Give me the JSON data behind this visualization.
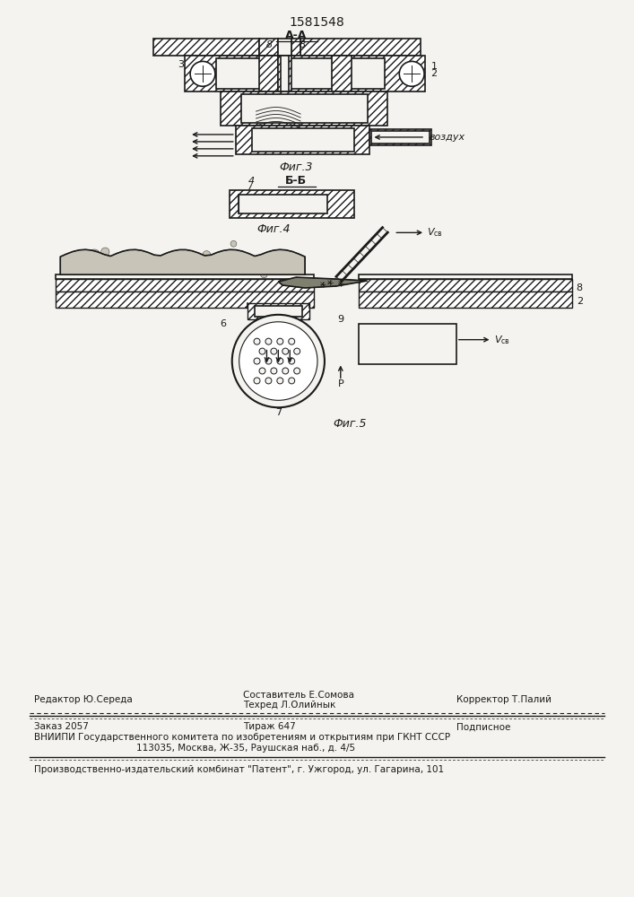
{
  "patent_number": "1581548",
  "background_color": "#f5f3ef",
  "line_color": "#1a1a1a",
  "fig3_label": "Фиг.3",
  "fig4_label": "Фиг.4",
  "fig5_label": "Фиг.5",
  "section_aa": "А-А",
  "section_bb": "Б-Б",
  "vozduh": "воздух",
  "footer_line1_left": "Редактор Ю.Середа",
  "footer_line1_mid": "Составитель Е.Сомова",
  "footer_line1_mid2": "Техред Л.Олийнык",
  "footer_line1_right": "Корректор Т.Палий",
  "footer_line2_left": "Заказ 2057",
  "footer_line2_mid": "Тираж 647",
  "footer_line2_right": "Подписное",
  "footer_line3": "ВНИИПИ Государственного комитета по изобретениям и открытиям при ГКНТ СССР",
  "footer_line4": "113035, Москва, Ж-35, Раушская наб., д. 4/5",
  "footer_line5": "Производственно-издательский комбинат \"Патент\", г. Ужгород, ул. Гагарина, 101"
}
